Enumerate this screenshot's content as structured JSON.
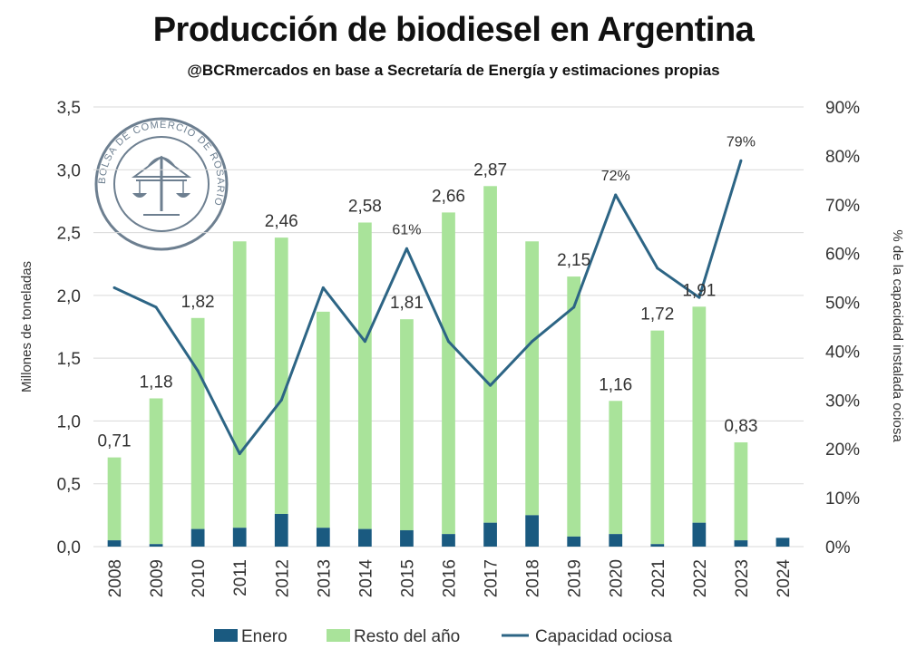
{
  "chart_data": {
    "type": "bar",
    "title": "Producción de biodiesel en Argentina",
    "subtitle": "@BCRmercados en base a Secretaría de Energía y estimaciones propias",
    "categories": [
      "2008",
      "2009",
      "2010",
      "2011",
      "2012",
      "2013",
      "2014",
      "2015",
      "2016",
      "2017",
      "2018",
      "2019",
      "2020",
      "2021",
      "2022",
      "2023",
      "2024"
    ],
    "total_labels": [
      "0,71",
      "1,18",
      "1,82",
      "",
      "2,46",
      "",
      "2,58",
      "1,81",
      "2,66",
      "2,87",
      "",
      "2,15",
      "1,16",
      "1,72",
      "1,91",
      "0,83",
      ""
    ],
    "series": [
      {
        "name": "Enero",
        "type": "bar-stack",
        "color": "#1a5a80",
        "values": [
          0.05,
          0.02,
          0.14,
          0.15,
          0.26,
          0.15,
          0.14,
          0.13,
          0.1,
          0.19,
          0.25,
          0.08,
          0.1,
          0.02,
          0.19,
          0.05,
          0.07
        ]
      },
      {
        "name": "Resto del año",
        "type": "bar-stack",
        "color": "#a9e39a",
        "values": [
          0.66,
          1.16,
          1.68,
          2.28,
          2.2,
          1.72,
          2.44,
          1.68,
          2.56,
          2.68,
          2.18,
          2.07,
          1.06,
          1.7,
          1.72,
          0.78,
          0.0
        ]
      },
      {
        "name": "Capacidad ociosa",
        "type": "line",
        "axis": "right",
        "color": "#2d6585",
        "values": [
          53,
          49,
          36,
          19,
          30,
          53,
          42,
          61,
          42,
          33,
          42,
          49,
          72,
          57,
          51,
          79,
          null
        ],
        "labels": [
          "",
          "",
          "",
          "",
          "",
          "",
          "",
          "61%",
          "",
          "",
          "",
          "",
          "72%",
          "",
          "",
          "79%",
          ""
        ]
      }
    ],
    "ylabel": "Millones de toneladas",
    "ylabel_right": "% de la capacidad instalada ociosa",
    "ylim": [
      0,
      3.5
    ],
    "ylim_right": [
      0,
      90
    ],
    "yticks": [
      "0,0",
      "0,5",
      "1,0",
      "1,5",
      "2,0",
      "2,5",
      "3,0",
      "3,5"
    ],
    "yticks_right": [
      "0%",
      "10%",
      "20%",
      "30%",
      "40%",
      "50%",
      "60%",
      "70%",
      "80%",
      "90%"
    ],
    "grid": true,
    "legend_position": "bottom"
  },
  "logo": {
    "text": "BOLSA DE COMERCIO DE ROSARIO"
  }
}
